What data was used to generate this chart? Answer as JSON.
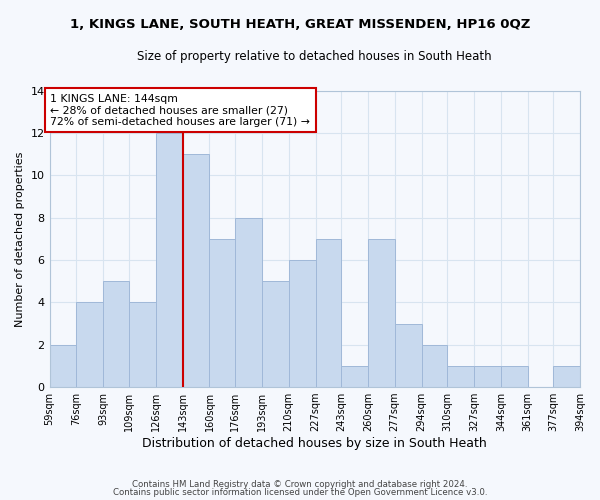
{
  "title": "1, KINGS LANE, SOUTH HEATH, GREAT MISSENDEN, HP16 0QZ",
  "subtitle": "Size of property relative to detached houses in South Heath",
  "xlabel": "Distribution of detached houses by size in South Heath",
  "ylabel": "Number of detached properties",
  "bar_color": "#c8d9ee",
  "bar_edgecolor": "#a0b8d8",
  "bin_labels": [
    "59sqm",
    "76sqm",
    "93sqm",
    "109sqm",
    "126sqm",
    "143sqm",
    "160sqm",
    "176sqm",
    "193sqm",
    "210sqm",
    "227sqm",
    "243sqm",
    "260sqm",
    "277sqm",
    "294sqm",
    "310sqm",
    "327sqm",
    "344sqm",
    "361sqm",
    "377sqm",
    "394sqm"
  ],
  "bin_edges": [
    59,
    76,
    93,
    109,
    126,
    143,
    160,
    176,
    193,
    210,
    227,
    243,
    260,
    277,
    294,
    310,
    327,
    344,
    361,
    377,
    394
  ],
  "counts": [
    2,
    4,
    5,
    4,
    12,
    11,
    7,
    8,
    5,
    6,
    7,
    1,
    7,
    3,
    2,
    1,
    1,
    1,
    0,
    1
  ],
  "ylim": [
    0,
    14
  ],
  "yticks": [
    0,
    2,
    4,
    6,
    8,
    10,
    12,
    14
  ],
  "property_line_x": 143,
  "annotation_text": "1 KINGS LANE: 144sqm\n← 28% of detached houses are smaller (27)\n72% of semi-detached houses are larger (71) →",
  "annotation_box_color": "#ffffff",
  "annotation_box_edgecolor": "#cc0000",
  "property_line_color": "#cc0000",
  "footer_line1": "Contains HM Land Registry data © Crown copyright and database right 2024.",
  "footer_line2": "Contains public sector information licensed under the Open Government Licence v3.0.",
  "grid_color": "#d8e4f0",
  "background_color": "#f5f8fd"
}
